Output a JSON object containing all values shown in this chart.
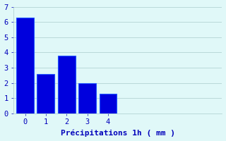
{
  "categories": [
    0,
    1,
    2,
    3,
    4
  ],
  "values": [
    6.3,
    2.6,
    3.8,
    2.0,
    1.3
  ],
  "bar_color": "#0000dd",
  "bar_edge_color": "#2255ff",
  "background_color": "#e0f8f8",
  "xlabel": "Précipitations 1h ( mm )",
  "ylim": [
    0,
    7
  ],
  "yticks": [
    0,
    1,
    2,
    3,
    4,
    5,
    6,
    7
  ],
  "xticks": [
    0,
    1,
    2,
    3,
    4
  ],
  "grid_color": "#aacccc",
  "label_color": "#0000bb",
  "tick_color": "#0000bb",
  "xlabel_fontsize": 8,
  "tick_fontsize": 7.5,
  "bar_width": 0.85
}
